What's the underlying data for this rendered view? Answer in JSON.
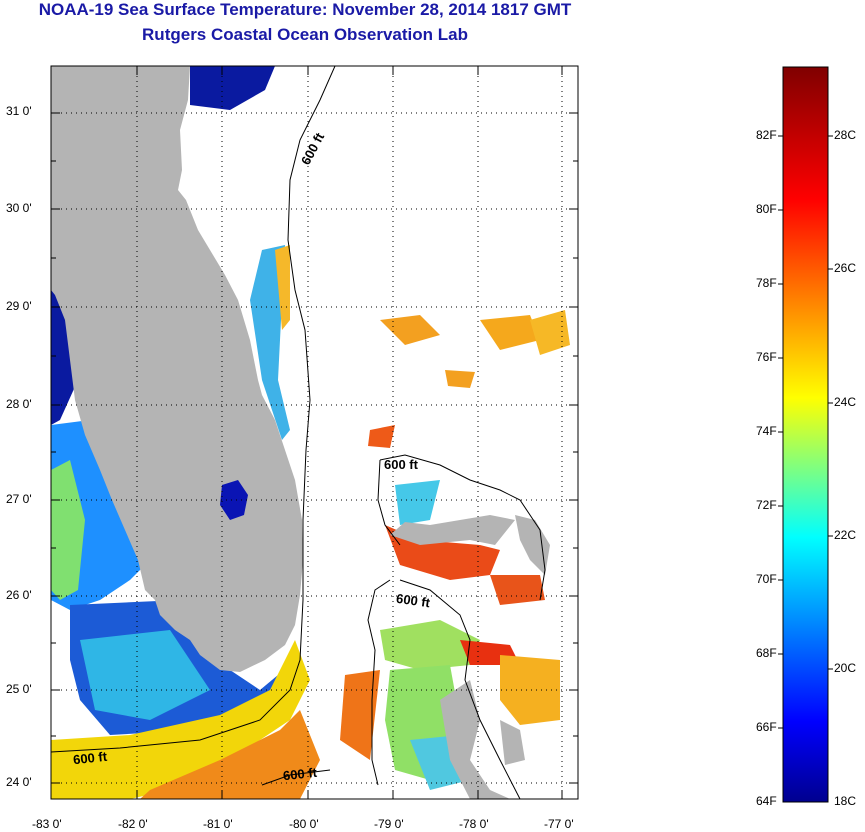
{
  "header": {
    "title": "NOAA-19 Sea Surface Temperature:  November 28, 2014 1817 GMT",
    "subtitle": "Rutgers Coastal Ocean Observation Lab"
  },
  "map": {
    "lat_labels": [
      "31 0'",
      "30 0'",
      "29 0'",
      "28 0'",
      "27 0'",
      "26 0'",
      "25 0'",
      "24 0'"
    ],
    "lon_labels": [
      "-83 0'",
      "-82 0'",
      "-81 0'",
      "-80 0'",
      "-79 0'",
      "-78 0'",
      "-77 0'"
    ],
    "contour_label": "600 ft",
    "land_color": "#b4b4b4",
    "grid": "dotted"
  },
  "colorbar": {
    "fahrenheit_labels": [
      "82F",
      "80F",
      "78F",
      "76F",
      "74F",
      "72F",
      "70F",
      "68F",
      "66F",
      "64F"
    ],
    "celsius_labels": [
      "28C",
      "26C",
      "24C",
      "22C",
      "20C",
      "18C"
    ],
    "colors": [
      "#00008f",
      "#0000ff",
      "#00ffff",
      "#ffff00",
      "#ff0000",
      "#800000"
    ]
  }
}
